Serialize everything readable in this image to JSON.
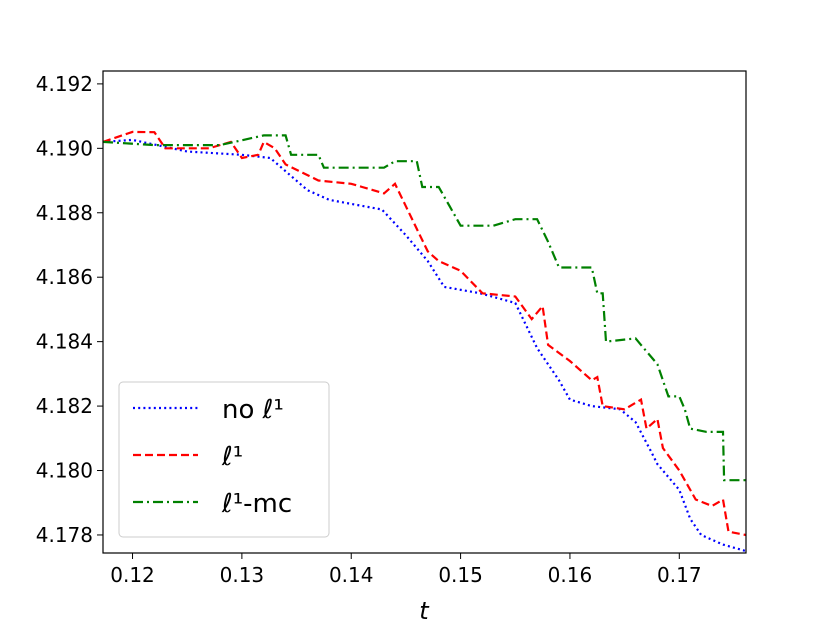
{
  "chart_data": {
    "type": "line",
    "title": "",
    "xlabel": "t",
    "ylabel": "",
    "xlim": [
      0.1173,
      0.1761
    ],
    "ylim": [
      4.17744,
      4.1924
    ],
    "xticks": [
      0.12,
      0.13,
      0.14,
      0.15,
      0.16,
      0.17
    ],
    "xtick_labels": [
      "0.12",
      "0.13",
      "0.14",
      "0.15",
      "0.16",
      "0.17"
    ],
    "yticks": [
      4.178,
      4.18,
      4.182,
      4.184,
      4.186,
      4.188,
      4.19,
      4.192
    ],
    "ytick_labels": [
      "4.178",
      "4.180",
      "4.182",
      "4.184",
      "4.186",
      "4.188",
      "4.190",
      "4.192"
    ],
    "grid": false,
    "legend_placement": "lower-left",
    "series": [
      {
        "name": "no ℓ¹",
        "color": "#0000ff",
        "style": "dotted",
        "x": [
          0.1173,
          0.12,
          0.125,
          0.13,
          0.1326,
          0.136,
          0.138,
          0.1428,
          0.145,
          0.147,
          0.1485,
          0.1518,
          0.155,
          0.157,
          0.159,
          0.16,
          0.162,
          0.1646,
          0.166,
          0.1674,
          0.168,
          0.17,
          0.171,
          0.172,
          0.174,
          0.1761
        ],
        "y": [
          4.1902,
          4.19026,
          4.1899,
          4.1898,
          4.1897,
          4.1887,
          4.1884,
          4.1881,
          4.1873,
          4.1865,
          4.1857,
          4.1855,
          4.1852,
          4.1838,
          4.1828,
          4.1822,
          4.182,
          4.1819,
          4.1815,
          4.1806,
          4.1802,
          4.1794,
          4.1785,
          4.178,
          4.1777,
          4.1775
        ]
      },
      {
        "name": "ℓ¹",
        "color": "#ff0000",
        "style": "dashed",
        "x": [
          0.1173,
          0.12,
          0.122,
          0.123,
          0.127,
          0.129,
          0.13,
          0.1315,
          0.132,
          0.133,
          0.134,
          0.137,
          0.14,
          0.141,
          0.143,
          0.144,
          0.145,
          0.146,
          0.147,
          0.148,
          0.15,
          0.152,
          0.155,
          0.1565,
          0.1575,
          0.158,
          0.16,
          0.162,
          0.1625,
          0.163,
          0.165,
          0.1665,
          0.167,
          0.168,
          0.1685,
          0.17,
          0.1715,
          0.173,
          0.174,
          0.1745,
          0.1761
        ],
        "y": [
          4.1902,
          4.19051,
          4.1905,
          4.19,
          4.19,
          4.1902,
          4.1897,
          4.1898,
          4.1902,
          4.19,
          4.1895,
          4.189,
          4.1889,
          4.1888,
          4.1886,
          4.1889,
          4.1882,
          4.1875,
          4.1868,
          4.1865,
          4.1862,
          4.1855,
          4.1854,
          4.1847,
          4.1851,
          4.1839,
          4.1834,
          4.1828,
          4.1829,
          4.182,
          4.1819,
          4.1822,
          4.1813,
          4.1816,
          4.1807,
          4.18,
          4.1791,
          4.1789,
          4.1791,
          4.1781,
          4.178
        ]
      },
      {
        "name": "ℓ¹-mc",
        "color": "#008000",
        "style": "dashdot",
        "x": [
          0.1173,
          0.122,
          0.128,
          0.132,
          0.134,
          0.1345,
          0.137,
          0.1375,
          0.14,
          0.143,
          0.144,
          0.146,
          0.1465,
          0.148,
          0.149,
          0.15,
          0.153,
          0.155,
          0.157,
          0.158,
          0.159,
          0.162,
          0.1625,
          0.163,
          0.1633,
          0.166,
          0.1665,
          0.168,
          0.169,
          0.17,
          0.1705,
          0.171,
          0.1725,
          0.174,
          0.1741,
          0.1761
        ],
        "y": [
          4.1902,
          4.1901,
          4.1901,
          4.1904,
          4.1904,
          4.1898,
          4.1898,
          4.1894,
          4.1894,
          4.1894,
          4.1896,
          4.1896,
          4.1888,
          4.1888,
          4.1882,
          4.1876,
          4.1876,
          4.1878,
          4.1878,
          4.1871,
          4.1863,
          4.1863,
          4.1855,
          4.1855,
          4.184,
          4.1841,
          4.1839,
          4.1833,
          4.1823,
          4.1823,
          4.1819,
          4.1813,
          4.1812,
          4.1812,
          4.1797,
          4.1797
        ]
      }
    ]
  }
}
